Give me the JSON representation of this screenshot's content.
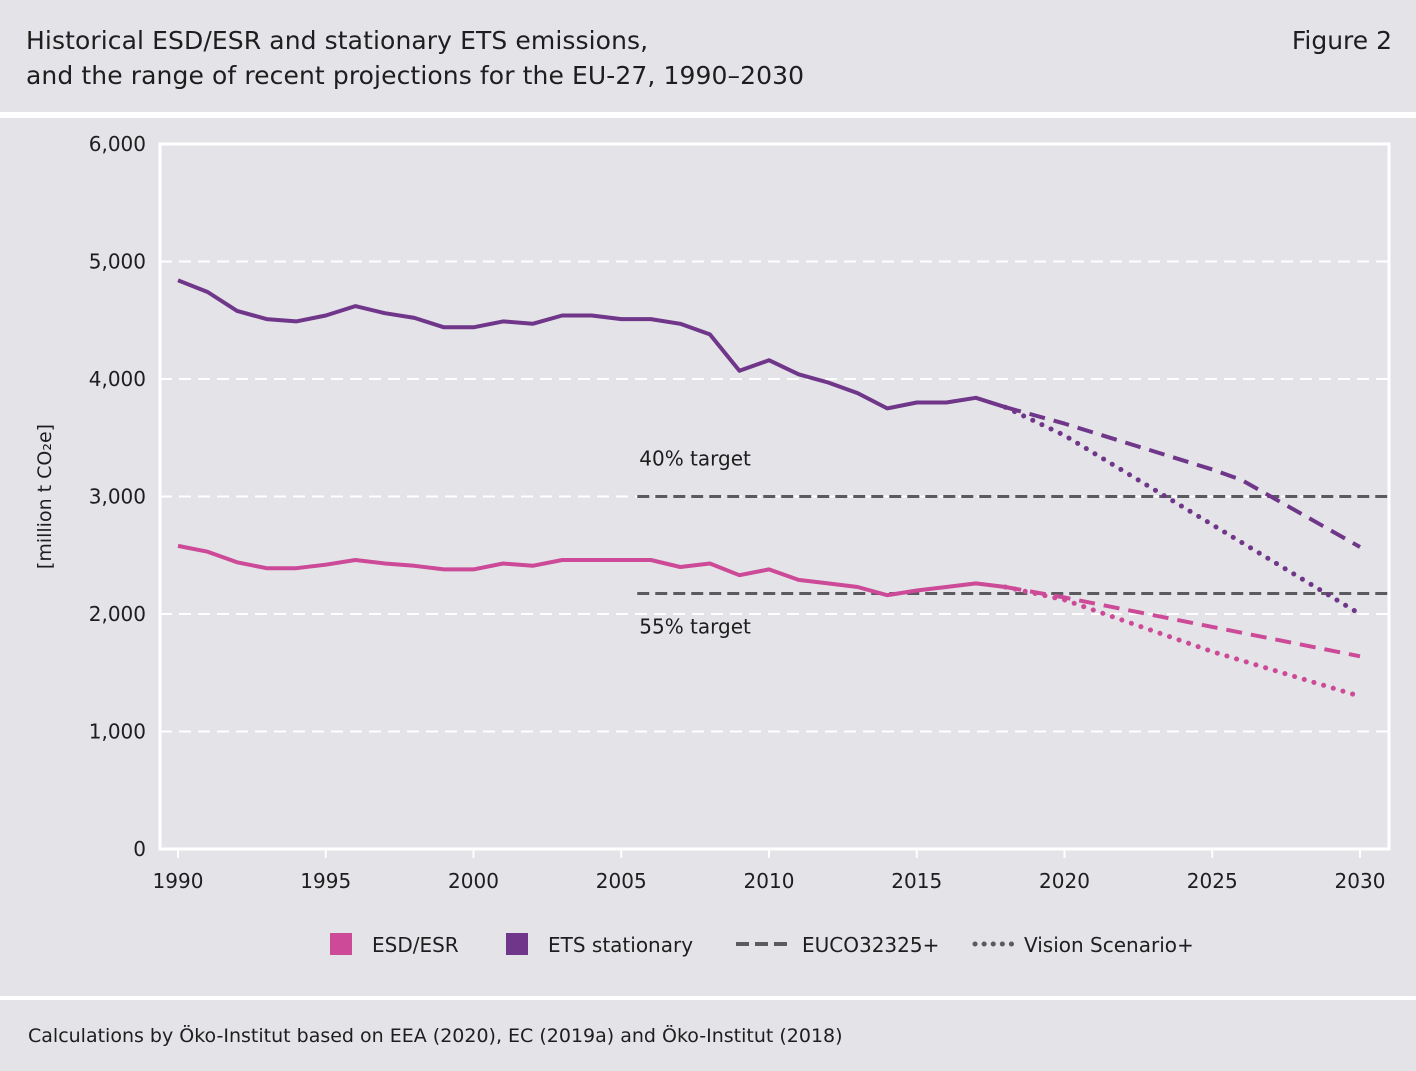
{
  "header": {
    "title_line1": "Historical ESD/ESR and stationary ETS emissions,",
    "title_line2": "and the range of recent projections for the EU-27, 1990–2030",
    "figure_label": "Figure 2"
  },
  "footer": {
    "source": "Calculations by Öko-Institut based on EEA (2020), EC (2019a) and Öko-Institut (2018)"
  },
  "colors": {
    "esd": "#cc4a97",
    "ets": "#6f3689",
    "target": "#5a5a5f",
    "grid": "#ffffff",
    "panel": "#e3e3e8"
  },
  "chart_data": {
    "type": "line",
    "ylabel": "[million t CO₂e]",
    "xlim": [
      1990,
      2030
    ],
    "ylim": [
      0,
      6000
    ],
    "x_ticks": [
      1990,
      1995,
      2000,
      2005,
      2010,
      2015,
      2020,
      2025,
      2030
    ],
    "y_ticks": [
      0,
      1000,
      2000,
      3000,
      4000,
      5000,
      6000
    ],
    "y_tick_labels": [
      "0",
      "1,000",
      "2,000",
      "3,000",
      "4,000",
      "5,000",
      "6,000"
    ],
    "grid": "horizontal dashed",
    "series": [
      {
        "name": "ETS stationary",
        "style": "solid",
        "color": "#6f3689",
        "x": [
          1990,
          1991,
          1992,
          1993,
          1994,
          1995,
          1996,
          1997,
          1998,
          1999,
          2000,
          2001,
          2002,
          2003,
          2004,
          2005,
          2006,
          2007,
          2008,
          2009,
          2010,
          2011,
          2012,
          2013,
          2014,
          2015,
          2016,
          2017,
          2018
        ],
        "values": [
          4840,
          4740,
          4580,
          4510,
          4490,
          4540,
          4620,
          4560,
          4520,
          4440,
          4440,
          4490,
          4470,
          4540,
          4540,
          4510,
          4510,
          4470,
          4380,
          4070,
          4160,
          4040,
          3970,
          3880,
          3750,
          3800,
          3800,
          3840,
          3760
        ]
      },
      {
        "name": "ESD/ESR",
        "style": "solid",
        "color": "#cc4a97",
        "x": [
          1990,
          1991,
          1992,
          1993,
          1994,
          1995,
          1996,
          1997,
          1998,
          1999,
          2000,
          2001,
          2002,
          2003,
          2004,
          2005,
          2006,
          2007,
          2008,
          2009,
          2010,
          2011,
          2012,
          2013,
          2014,
          2015,
          2016,
          2017,
          2018
        ],
        "values": [
          2580,
          2530,
          2440,
          2390,
          2390,
          2420,
          2460,
          2430,
          2410,
          2380,
          2380,
          2430,
          2410,
          2460,
          2460,
          2460,
          2460,
          2400,
          2430,
          2330,
          2380,
          2290,
          2260,
          2230,
          2160,
          2200,
          2230,
          2260,
          2230
        ]
      },
      {
        "name": "ETS stationary – EUCO32325+",
        "style": "dashed",
        "color": "#6f3689",
        "x": [
          2018,
          2020,
          2025,
          2026,
          2030
        ],
        "values": [
          3760,
          3620,
          3230,
          3140,
          2570
        ]
      },
      {
        "name": "ETS stationary – Vision Scenario+",
        "style": "dotted",
        "color": "#6f3689",
        "x": [
          2018,
          2020,
          2025,
          2030
        ],
        "values": [
          3760,
          3520,
          2760,
          2000
        ]
      },
      {
        "name": "ESD/ESR – EUCO32325+",
        "style": "dashed",
        "color": "#cc4a97",
        "x": [
          2018,
          2020,
          2025,
          2030
        ],
        "values": [
          2230,
          2140,
          1890,
          1640
        ]
      },
      {
        "name": "ESD/ESR – Vision Scenario+",
        "style": "dotted",
        "color": "#cc4a97",
        "x": [
          2018,
          2020,
          2025,
          2030
        ],
        "values": [
          2230,
          2120,
          1680,
          1300
        ]
      }
    ],
    "targets": [
      {
        "label": "40% target",
        "value": 3000,
        "from": 2005,
        "to": 2030,
        "label_position": "above"
      },
      {
        "label": "55% target",
        "value": 2175,
        "from": 2005,
        "to": 2030,
        "label_position": "below"
      }
    ],
    "legend": [
      {
        "label": "ESD/ESR",
        "kind": "swatch",
        "color": "#cc4a97"
      },
      {
        "label": "ETS stationary",
        "kind": "swatch",
        "color": "#6f3689"
      },
      {
        "label": "EUCO32325+",
        "kind": "dashed",
        "color": "#5a5a5f"
      },
      {
        "label": "Vision Scenario+",
        "kind": "dotted",
        "color": "#5a5a5f"
      }
    ],
    "legend_position": "bottom"
  }
}
